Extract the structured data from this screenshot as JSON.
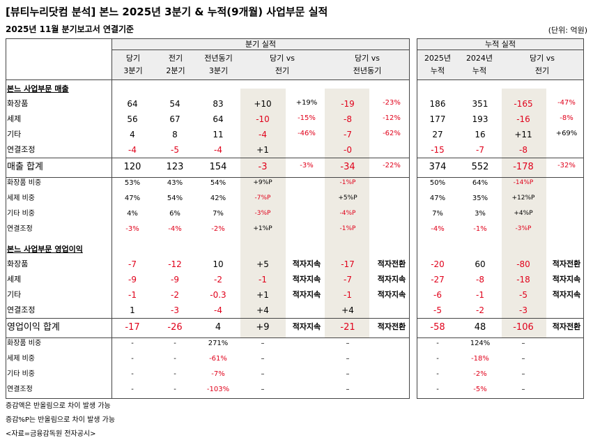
{
  "title": "[뷰티누리닷컴 분석] 본느 2025년 3분기 & 누적(9개월) 사업부문 실적",
  "subtitle": "2025년 11월 분기보고서 연결기준",
  "unit": "(단위: 억원)",
  "headers": {
    "quarter_group": "분기 실적",
    "cumulative_group": "누적 실적",
    "cols": [
      [
        "당기",
        "3분기"
      ],
      [
        "전기",
        "2분기"
      ],
      [
        "전년동기",
        "3분기"
      ],
      [
        "당기 vs",
        "전기"
      ],
      [
        "당기 vs",
        "전년동기"
      ],
      [
        "2025년",
        "누적"
      ],
      [
        "2024년",
        "누적"
      ],
      [
        "당기 vs",
        "전기"
      ]
    ]
  },
  "sales_section": "본느 사업부문 매출",
  "sales_rows": [
    [
      "화장품",
      "64",
      "54",
      "83",
      "+10",
      "+19%",
      "-19",
      "-23%",
      "186",
      "351",
      "-165",
      "-47%"
    ],
    [
      "세제",
      "56",
      "67",
      "64",
      "-10",
      "-15%",
      "-8",
      "-12%",
      "177",
      "193",
      "-16",
      "-8%"
    ],
    [
      "기타",
      "4",
      "8",
      "11",
      "-4",
      "-46%",
      "-7",
      "-62%",
      "27",
      "16",
      "+11",
      "+69%"
    ],
    [
      "연결조정",
      "-4",
      "-5",
      "-4",
      "+1",
      "",
      "-0",
      "",
      "-15",
      "-7",
      "-8",
      ""
    ]
  ],
  "sales_total": [
    "매출 합계",
    "120",
    "123",
    "154",
    "-3",
    "-3%",
    "-34",
    "-22%",
    "374",
    "552",
    "-178",
    "-32%"
  ],
  "sales_ratio_rows": [
    [
      "화장품 비중",
      "53%",
      "43%",
      "54%",
      "+9%P",
      "",
      "-1%P",
      "",
      "50%",
      "64%",
      "-14%P",
      ""
    ],
    [
      "세제 비중",
      "47%",
      "54%",
      "42%",
      "-7%P",
      "",
      "+5%P",
      "",
      "47%",
      "35%",
      "+12%P",
      ""
    ],
    [
      "기타 비중",
      "4%",
      "6%",
      "7%",
      "-3%P",
      "",
      "-4%P",
      "",
      "7%",
      "3%",
      "+4%P",
      ""
    ],
    [
      "연결조정",
      "-3%",
      "-4%",
      "-2%",
      "+1%P",
      "",
      "-1%P",
      "",
      "-4%",
      "-1%",
      "-3%P",
      ""
    ]
  ],
  "op_section": "본느 사업부문 영업이익",
  "op_rows": [
    [
      "화장품",
      "-7",
      "-12",
      "10",
      "+5",
      "적자지속",
      "-17",
      "적자전환",
      "-20",
      "60",
      "-80",
      "적자전환"
    ],
    [
      "세제",
      "-9",
      "-9",
      "-2",
      "-1",
      "적자지속",
      "-7",
      "적자지속",
      "-27",
      "-8",
      "-18",
      "적자지속"
    ],
    [
      "기타",
      "-1",
      "-2",
      "-0.3",
      "+1",
      "적자지속",
      "-1",
      "적자지속",
      "-6",
      "-1",
      "-5",
      "적자지속"
    ],
    [
      "연결조정",
      "1",
      "-3",
      "-4",
      "+4",
      "",
      "+4",
      "",
      "-5",
      "-2",
      "-3",
      ""
    ]
  ],
  "op_total": [
    "영업이익 합계",
    "-17",
    "-26",
    "4",
    "+9",
    "적자지속",
    "-21",
    "적자전환",
    "-58",
    "48",
    "-106",
    "적자전환"
  ],
  "op_ratio_rows": [
    [
      "화장품 비중",
      "-",
      "-",
      "271%",
      "–",
      "",
      "–",
      "",
      "-",
      "124%",
      "–",
      ""
    ],
    [
      "세제 비중",
      "-",
      "-",
      "-61%",
      "–",
      "",
      "–",
      "",
      "-",
      "-18%",
      "–",
      ""
    ],
    [
      "기타 비중",
      "-",
      "-",
      "-7%",
      "–",
      "",
      "–",
      "",
      "-",
      "-2%",
      "–",
      ""
    ],
    [
      "연결조정",
      "-",
      "-",
      "-103%",
      "–",
      "",
      "–",
      "",
      "-",
      "-5%",
      "–",
      ""
    ]
  ],
  "footnotes": [
    "증감액은 반올림으로 차이 발생 가능",
    "증감%P는 반올림으로 차이 발생 가능",
    "<자료=금융감독원 전자공시>"
  ],
  "colors": {
    "negative": "#e0001a",
    "shade": "#eeebe3"
  }
}
